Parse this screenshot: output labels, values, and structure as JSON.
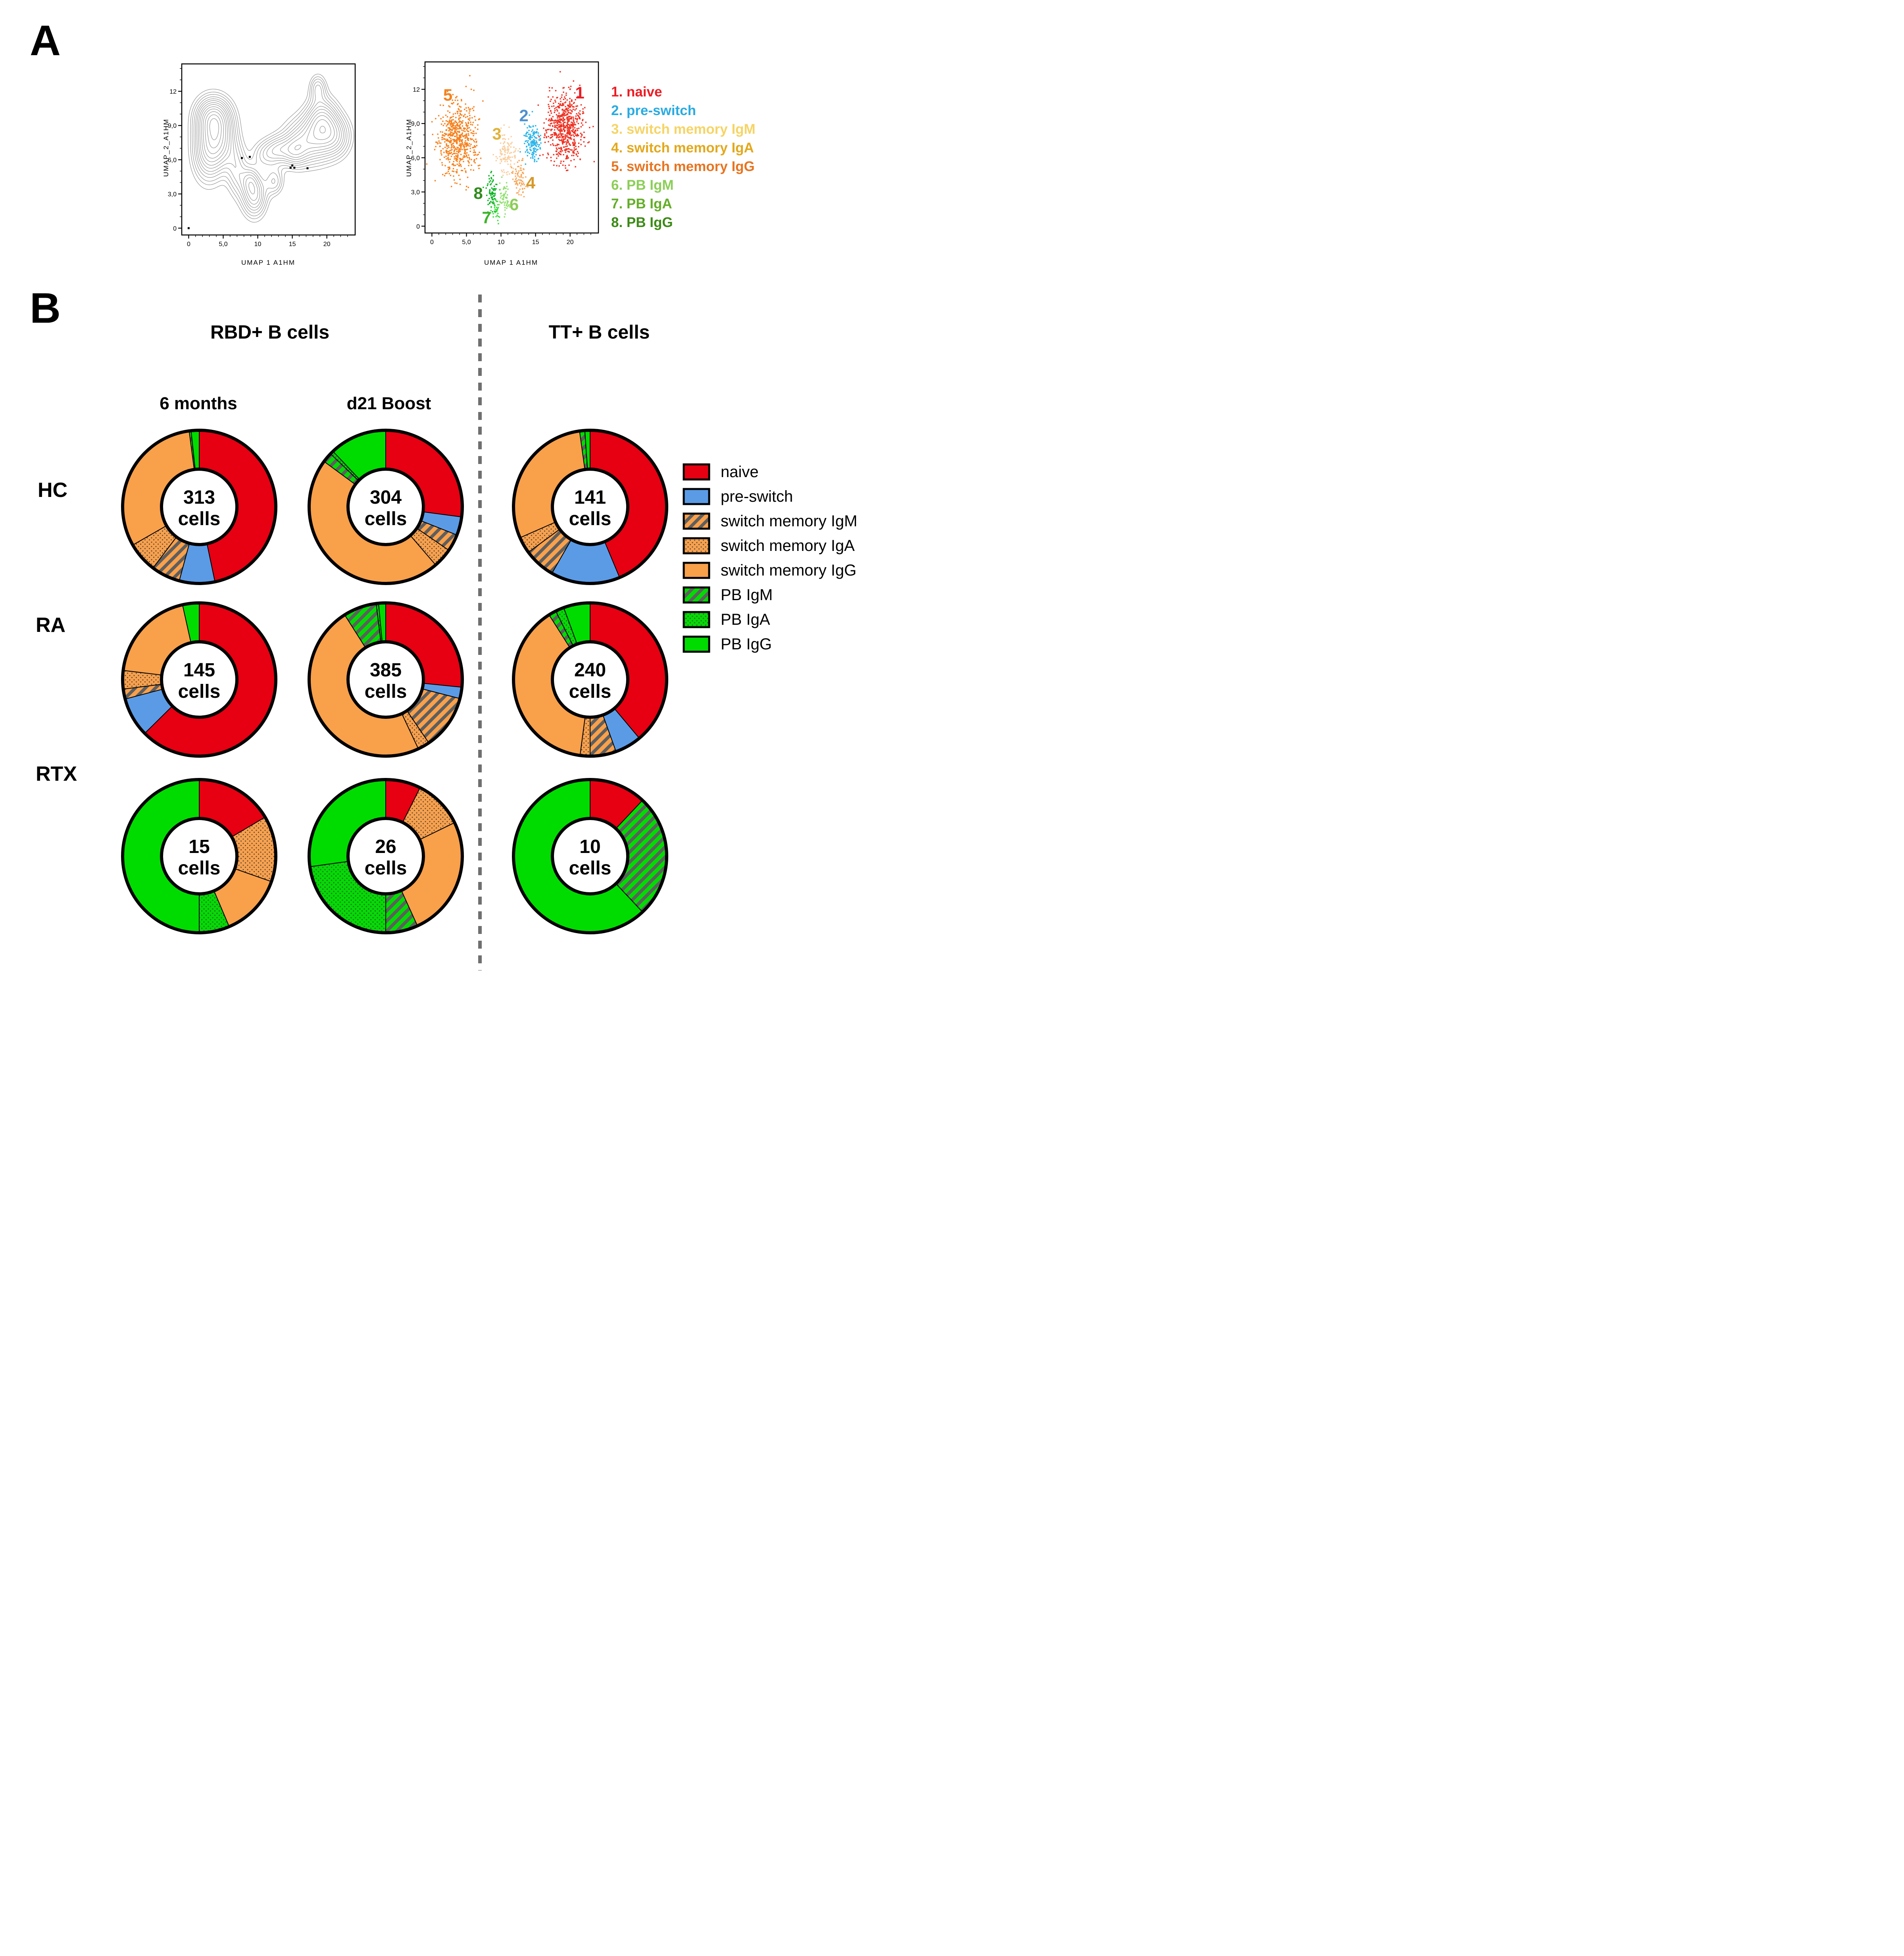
{
  "panel_a": {
    "label": "A",
    "legend": [
      {
        "text": "1. naive",
        "color": "#ED1C24"
      },
      {
        "text": "2. pre-switch",
        "color": "#29ABE2"
      },
      {
        "text": "3. switch memory IgM",
        "color": "#F6D465"
      },
      {
        "text": "4. switch memory IgA",
        "color": "#E3A81C"
      },
      {
        "text": "5. switch memory IgG",
        "color": "#E87420"
      },
      {
        "text": "6. PB IgM",
        "color": "#8CCE58"
      },
      {
        "text": "7. PB IgA",
        "color": "#64AE28"
      },
      {
        "text": "8. PB IgG",
        "color": "#3B8A14"
      }
    ]
  },
  "panel_b": {
    "label": "B",
    "col_headers": [
      "RBD+ B cells",
      "TT+ B cells"
    ],
    "sub_headers": [
      "6 months",
      "d21 Boost"
    ],
    "row_labels": [
      "HC",
      "RA",
      "RTX"
    ],
    "legend_categories": [
      "naive",
      "pre-switch",
      "switch memory IgM",
      "switch memory IgA",
      "switch memory IgG",
      "PB IgM",
      "PB IgA",
      "PB IgG"
    ],
    "fills": {
      "naive": {
        "type": "solid",
        "color": "#E60012"
      },
      "pre-switch": {
        "type": "solid",
        "color": "#5B9BE6"
      },
      "switch memory IgM": {
        "type": "pattern",
        "pattern": "stripe",
        "color": "#F9A04B"
      },
      "switch memory IgA": {
        "type": "pattern",
        "pattern": "dots",
        "color": "#F9A04B"
      },
      "switch memory IgG": {
        "type": "solid",
        "color": "#F9A04B"
      },
      "PB IgM": {
        "type": "pattern",
        "pattern": "stripe",
        "color": "#00DC00"
      },
      "PB IgA": {
        "type": "pattern",
        "pattern": "dots",
        "color": "#00DC00"
      },
      "PB IgG": {
        "type": "solid",
        "color": "#00DC00"
      }
    },
    "pattern_ink": "#4A4A4A"
  },
  "chart_data": [
    {
      "type": "contour",
      "x_label": "UMAP 1 A1HM",
      "y_label": "UMAP_2_A1HM",
      "x_ticks": [
        {
          "v": 0,
          "label": "0"
        },
        {
          "v": 5,
          "label": "5,0"
        },
        {
          "v": 10,
          "label": "10"
        },
        {
          "v": 15,
          "label": "15"
        },
        {
          "v": 20,
          "label": "20"
        }
      ],
      "y_ticks": [
        {
          "v": 0,
          "label": "0"
        },
        {
          "v": 3,
          "label": "3,0"
        },
        {
          "v": 6,
          "label": "6,0"
        },
        {
          "v": 9,
          "label": "9,0"
        },
        {
          "v": 12,
          "label": "12"
        }
      ],
      "x_range": [
        -1,
        24.1
      ],
      "y_range": [
        -0.6,
        14.4
      ],
      "density_peaks": [
        [
          3.6,
          9.8,
          1.7,
          1.2,
          1.0
        ],
        [
          2.8,
          7.0,
          1.5,
          1.9,
          0.95
        ],
        [
          4.8,
          7.6,
          1.5,
          1.6,
          0.8
        ],
        [
          9.5,
          2.9,
          1.2,
          1.3,
          0.9
        ],
        [
          12.4,
          4.1,
          0.9,
          0.8,
          0.5
        ],
        [
          11.1,
          6.4,
          1.3,
          0.9,
          0.45
        ],
        [
          13.0,
          6.9,
          1.2,
          0.8,
          0.5
        ],
        [
          15.3,
          6.7,
          1.2,
          0.9,
          0.55
        ],
        [
          17.6,
          7.7,
          2.4,
          1.4,
          0.95
        ],
        [
          19.3,
          9.6,
          1.5,
          1.3,
          0.85
        ],
        [
          18.7,
          12.3,
          0.8,
          0.8,
          0.5
        ],
        [
          21.3,
          8.1,
          1.5,
          1.2,
          0.6
        ],
        [
          7.0,
          5.0,
          1.0,
          1.5,
          0.5
        ],
        [
          8.8,
          4.2,
          0.8,
          0.8,
          0.4
        ]
      ],
      "level_fractions": [
        0.1,
        0.15,
        0.2,
        0.26,
        0.32,
        0.38,
        0.45,
        0.52,
        0.6,
        0.68,
        0.77,
        0.86,
        0.94
      ],
      "outlier_points": [
        [
          0,
          0
        ],
        [
          7.7,
          6.15
        ],
        [
          8.85,
          6.25
        ],
        [
          14.75,
          5.3
        ],
        [
          15.0,
          5.5
        ],
        [
          15.3,
          5.3
        ],
        [
          17.2,
          5.25
        ]
      ]
    },
    {
      "type": "scatter",
      "x_label": "UMAP 1 A1HM",
      "y_label": "UMAP_2_A1HM",
      "x_ticks": [
        {
          "v": 0,
          "label": "0"
        },
        {
          "v": 5,
          "label": "5,0"
        },
        {
          "v": 10,
          "label": "10"
        },
        {
          "v": 15,
          "label": "15"
        },
        {
          "v": 20,
          "label": "20"
        }
      ],
      "y_ticks": [
        {
          "v": 0,
          "label": "0"
        },
        {
          "v": 3,
          "label": "3,0"
        },
        {
          "v": 6,
          "label": "6,0"
        },
        {
          "v": 9,
          "label": "9,0"
        },
        {
          "v": 12,
          "label": "12"
        }
      ],
      "x_range": [
        -1,
        24.1
      ],
      "y_range": [
        -0.6,
        14.4
      ],
      "clusters": [
        {
          "id": 5,
          "name": "switch memory IgG",
          "color": "#F58220",
          "cx": 3.8,
          "cy": 7.6,
          "sx": 1.55,
          "sy": 1.75,
          "n": 620,
          "label": {
            "text": "5",
            "x": 2.3,
            "y": 11.0,
            "color": "#F58220"
          }
        },
        {
          "id": 1,
          "name": "naive",
          "color": "#EE3324",
          "cx": 19.2,
          "cy": 8.6,
          "sx": 1.5,
          "sy": 1.7,
          "n": 620,
          "label": {
            "text": "1",
            "x": 21.4,
            "y": 11.2,
            "color": "#ED1C24"
          }
        },
        {
          "id": 2,
          "name": "pre-switch",
          "color": "#2BB5EA",
          "cx": 14.6,
          "cy": 7.4,
          "sx": 0.7,
          "sy": 1.0,
          "n": 150,
          "label": {
            "text": "2",
            "x": 13.3,
            "y": 9.2,
            "color": "#4E8FD0"
          }
        },
        {
          "id": 3,
          "name": "switch memory IgM",
          "color": "#F8CFA2",
          "cx": 10.8,
          "cy": 6.3,
          "sx": 0.85,
          "sy": 1.0,
          "n": 120,
          "label": {
            "text": "3",
            "x": 9.4,
            "y": 7.6,
            "color": "#E0B33C"
          }
        },
        {
          "id": 4,
          "name": "switch memory IgA",
          "color": "#F8A75C",
          "cx": 12.7,
          "cy": 4.1,
          "sx": 0.6,
          "sy": 0.95,
          "n": 75,
          "label": {
            "text": "4",
            "x": 14.3,
            "y": 3.3,
            "color": "#D6992B"
          }
        },
        {
          "id": 8,
          "name": "PB IgG",
          "color": "#0CB424",
          "cx": 8.7,
          "cy": 2.9,
          "sx": 0.5,
          "sy": 0.85,
          "n": 75,
          "label": {
            "text": "8",
            "x": 6.7,
            "y": 2.4,
            "color": "#2F8C1C"
          }
        },
        {
          "id": 6,
          "name": "PB IgM",
          "color": "#8EE06B",
          "cx": 10.4,
          "cy": 2.4,
          "sx": 0.42,
          "sy": 0.8,
          "n": 55,
          "label": {
            "text": "6",
            "x": 11.9,
            "y": 1.4,
            "color": "#8CCE58"
          }
        },
        {
          "id": 7,
          "name": "PB IgA",
          "color": "#3EDC3E",
          "cx": 9.3,
          "cy": 1.4,
          "sx": 0.38,
          "sy": 0.5,
          "n": 28,
          "label": {
            "text": "7",
            "x": 7.9,
            "y": 0.25,
            "color": "#3CB428"
          }
        }
      ]
    },
    {
      "type": "donut",
      "row": "HC",
      "column": "6 months",
      "group": "RBD+ B cells",
      "total_cells": 313,
      "center_label": "313",
      "sub_label": "cells",
      "segments": [
        {
          "category": "naive",
          "pct": 46.7
        },
        {
          "category": "pre-switch",
          "pct": 7.5
        },
        {
          "category": "switch memory IgM",
          "pct": 6.1
        },
        {
          "category": "switch memory IgA",
          "pct": 6.4
        },
        {
          "category": "switch memory IgG",
          "pct": 31.2
        },
        {
          "category": "PB IgM",
          "pct": 0.4
        },
        {
          "category": "PB IgG",
          "pct": 1.7
        }
      ]
    },
    {
      "type": "donut",
      "row": "HC",
      "column": "d21 Boost",
      "group": "RBD+ B cells",
      "total_cells": 304,
      "center_label": "304",
      "sub_label": "cells",
      "segments": [
        {
          "category": "naive",
          "pct": 27.1
        },
        {
          "category": "pre-switch",
          "pct": 3.9
        },
        {
          "category": "switch memory IgM",
          "pct": 3.6
        },
        {
          "category": "switch memory IgA",
          "pct": 4.1
        },
        {
          "category": "switch memory IgG",
          "pct": 46.4
        },
        {
          "category": "PB IgM",
          "pct": 2.1
        },
        {
          "category": "PB IgA",
          "pct": 0.7
        },
        {
          "category": "PB IgG",
          "pct": 12.1
        }
      ]
    },
    {
      "type": "donut",
      "row": "HC",
      "column": "TT+",
      "group": "TT+ B cells",
      "total_cells": 141,
      "center_label": "141",
      "sub_label": "cells",
      "segments": [
        {
          "category": "naive",
          "pct": 43.7
        },
        {
          "category": "pre-switch",
          "pct": 14.6
        },
        {
          "category": "switch memory IgM",
          "pct": 6.6
        },
        {
          "category": "switch memory IgA",
          "pct": 3.5
        },
        {
          "category": "switch memory IgG",
          "pct": 29.4
        },
        {
          "category": "PB IgM",
          "pct": 1.1
        },
        {
          "category": "PB IgG",
          "pct": 1.1
        }
      ]
    },
    {
      "type": "donut",
      "row": "RA",
      "column": "6 months",
      "group": "RBD+ B cells",
      "total_cells": 145,
      "center_label": "145",
      "sub_label": "cells",
      "segments": [
        {
          "category": "naive",
          "pct": 62.6
        },
        {
          "category": "pre-switch",
          "pct": 8.3
        },
        {
          "category": "switch memory IgM",
          "pct": 2.1
        },
        {
          "category": "switch memory IgA",
          "pct": 3.9
        },
        {
          "category": "switch memory IgG",
          "pct": 19.6
        },
        {
          "category": "PB IgG",
          "pct": 3.5
        }
      ]
    },
    {
      "type": "donut",
      "row": "RA",
      "column": "d21 Boost",
      "group": "RBD+ B cells",
      "total_cells": 385,
      "center_label": "385",
      "sub_label": "cells",
      "segments": [
        {
          "category": "naive",
          "pct": 26.6
        },
        {
          "category": "pre-switch",
          "pct": 2.4
        },
        {
          "category": "switch memory IgM",
          "pct": 11.5
        },
        {
          "category": "switch memory IgA",
          "pct": 2.5
        },
        {
          "category": "switch memory IgG",
          "pct": 48.0
        },
        {
          "category": "PB IgM",
          "pct": 7.0
        },
        {
          "category": "PB IgA",
          "pct": 0.5
        },
        {
          "category": "PB IgG",
          "pct": 1.5
        }
      ]
    },
    {
      "type": "donut",
      "row": "RA",
      "column": "TT+",
      "group": "TT+ B cells",
      "total_cells": 240,
      "center_label": "240",
      "sub_label": "cells",
      "segments": [
        {
          "category": "naive",
          "pct": 38.9
        },
        {
          "category": "pre-switch",
          "pct": 5.6
        },
        {
          "category": "switch memory IgM",
          "pct": 5.5
        },
        {
          "category": "switch memory IgA",
          "pct": 2.1
        },
        {
          "category": "switch memory IgG",
          "pct": 38.9
        },
        {
          "category": "PB IgM",
          "pct": 1.6
        },
        {
          "category": "PB IgA",
          "pct": 1.8
        },
        {
          "category": "PB IgG",
          "pct": 5.6
        }
      ]
    },
    {
      "type": "donut",
      "row": "RTX",
      "column": "6 months",
      "group": "RBD+ B cells",
      "total_cells": 15,
      "center_label": "15",
      "sub_label": "cells",
      "segments": [
        {
          "category": "naive",
          "pct": 16.5
        },
        {
          "category": "switch memory IgA",
          "pct": 13.9
        },
        {
          "category": "switch memory IgG",
          "pct": 13.2
        },
        {
          "category": "PB IgA",
          "pct": 6.4
        },
        {
          "category": "PB IgG",
          "pct": 50.0
        }
      ]
    },
    {
      "type": "donut",
      "row": "RTX",
      "column": "d21 Boost",
      "group": "RBD+ B cells",
      "total_cells": 26,
      "center_label": "26",
      "sub_label": "cells",
      "segments": [
        {
          "category": "naive",
          "pct": 7.4
        },
        {
          "category": "switch memory IgA",
          "pct": 10.4
        },
        {
          "category": "switch memory IgG",
          "pct": 25.4
        },
        {
          "category": "PB IgM",
          "pct": 6.8
        },
        {
          "category": "PB IgA",
          "pct": 22.8
        },
        {
          "category": "PB IgG",
          "pct": 27.2
        }
      ]
    },
    {
      "type": "donut",
      "row": "RTX",
      "column": "TT+",
      "group": "TT+ B cells",
      "total_cells": 10,
      "center_label": "10",
      "sub_label": "cells",
      "segments": [
        {
          "category": "naive",
          "pct": 12.0
        },
        {
          "category": "PB IgM",
          "pct": 26.0
        },
        {
          "category": "PB IgG",
          "pct": 62.0
        }
      ]
    }
  ]
}
